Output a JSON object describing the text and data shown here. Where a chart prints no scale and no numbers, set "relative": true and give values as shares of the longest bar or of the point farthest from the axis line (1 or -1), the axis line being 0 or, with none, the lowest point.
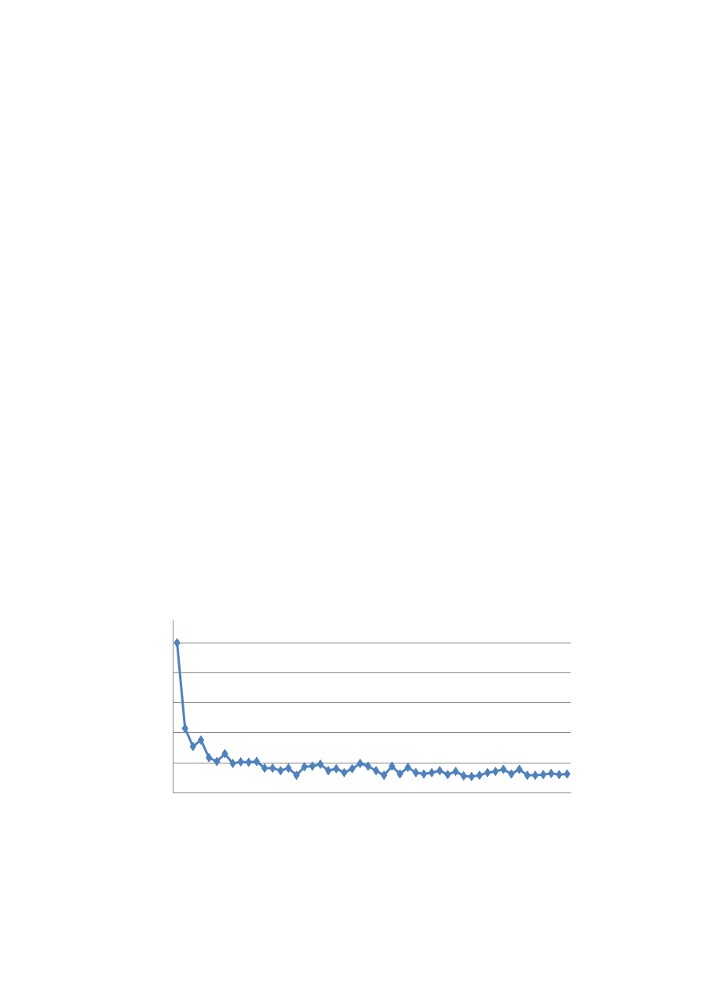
{
  "chart_data": {
    "type": "line",
    "relative": true,
    "marker": "diamond",
    "grid": "y",
    "tick_labels": false,
    "categories": [
      null,
      null,
      null,
      null,
      null,
      null,
      null,
      null,
      null,
      null,
      null,
      null,
      null,
      null,
      null,
      null,
      null,
      null,
      null,
      null,
      null,
      null,
      null,
      null,
      null,
      null,
      null,
      null,
      null,
      null,
      null,
      null,
      null,
      null,
      null,
      null,
      null,
      null,
      null,
      null,
      null,
      null,
      null,
      null,
      null,
      null,
      null,
      null,
      null,
      null
    ],
    "series": [
      {
        "color": "#4f81bd",
        "values": [
          1.0,
          0.43,
          0.309,
          0.352,
          0.235,
          0.209,
          0.261,
          0.196,
          0.207,
          0.204,
          0.209,
          0.165,
          0.165,
          0.148,
          0.165,
          0.117,
          0.174,
          0.178,
          0.191,
          0.148,
          0.161,
          0.135,
          0.161,
          0.196,
          0.178,
          0.148,
          0.117,
          0.178,
          0.126,
          0.17,
          0.135,
          0.126,
          0.135,
          0.148,
          0.122,
          0.143,
          0.113,
          0.109,
          0.117,
          0.135,
          0.143,
          0.157,
          0.126,
          0.157,
          0.117,
          0.117,
          0.122,
          0.13,
          0.122,
          0.126
        ]
      }
    ]
  }
}
